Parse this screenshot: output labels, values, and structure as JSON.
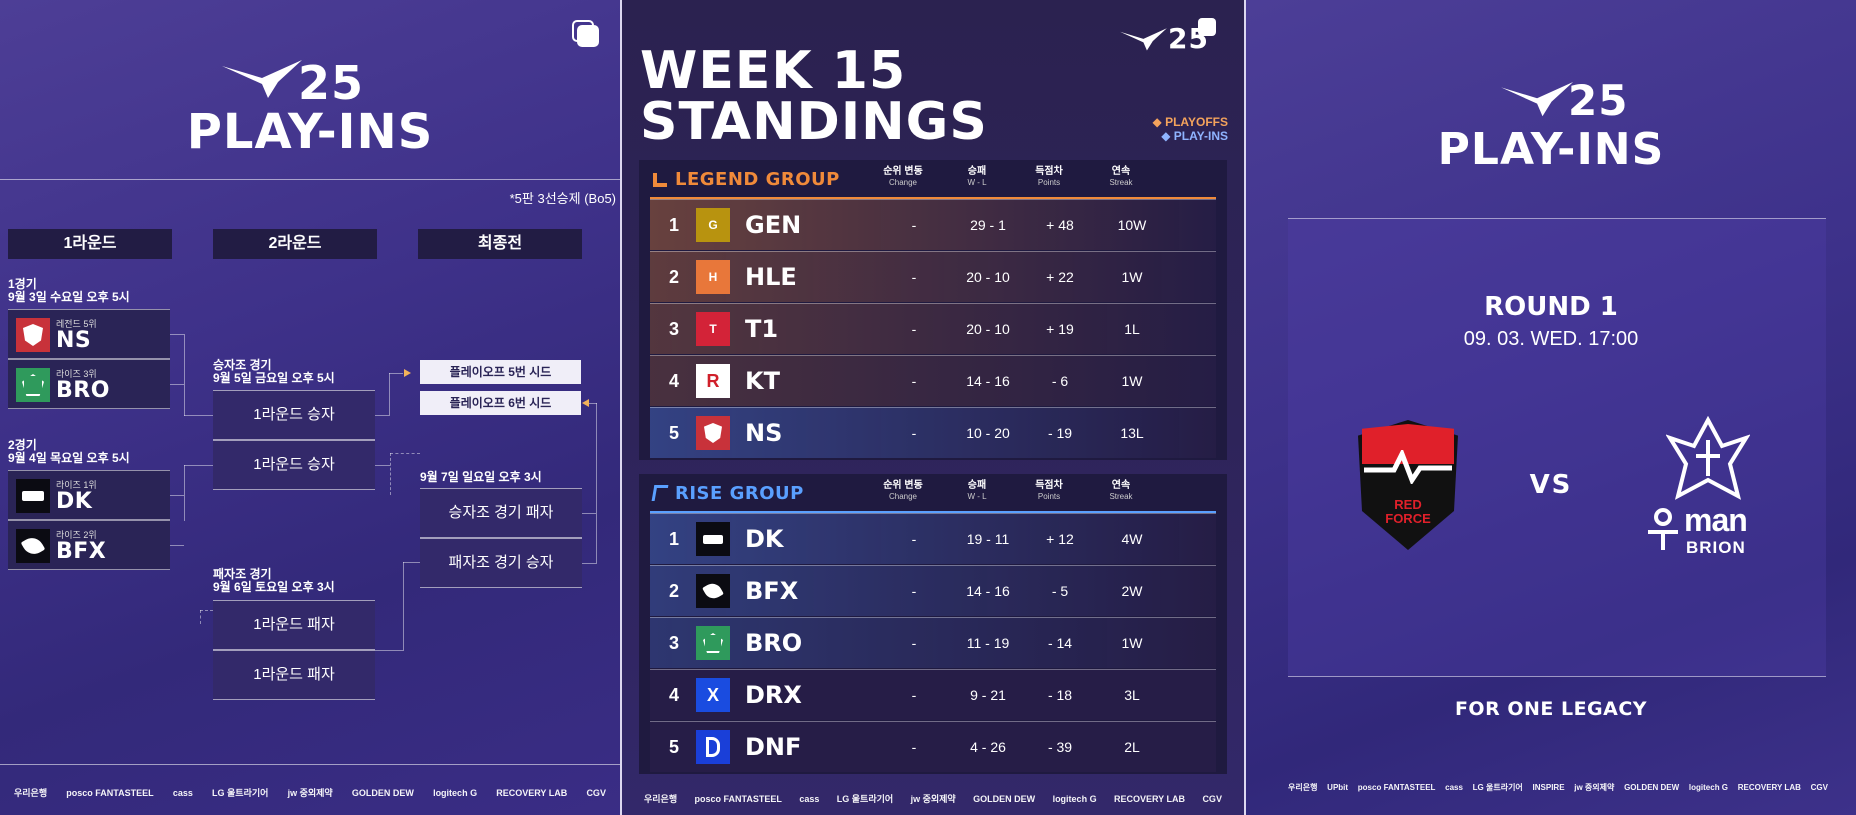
{
  "playins": {
    "year": "25",
    "title": "PLAY-INS",
    "note": "*5판 3선승제 (Bo5)",
    "round_headers": [
      "1라운드",
      "2라운드",
      "최종전"
    ],
    "match1": {
      "label": "1경기",
      "date": "9월 3일 수요일 오후 5시",
      "teams": [
        {
          "sub": "레전드 5위",
          "name": "NS"
        },
        {
          "sub": "라이즈 3위",
          "name": "BRO"
        }
      ]
    },
    "match2": {
      "label": "2경기",
      "date": "9월 4일 목요일 오후 5시",
      "teams": [
        {
          "sub": "라이즈 1위",
          "name": "DK"
        },
        {
          "sub": "라이즈 2위",
          "name": "BFX"
        }
      ]
    },
    "winners": {
      "label": "승자조 경기",
      "date": "9월 5일 금요일 오후 5시",
      "slots": [
        "1라운드 승자",
        "1라운드 승자"
      ]
    },
    "losers": {
      "label": "패자조 경기",
      "date": "9월 6일 토요일 오후 3시",
      "slots": [
        "1라운드 패자",
        "1라운드 패자"
      ]
    },
    "final": {
      "date": "9월 7일 일요일 오후 3시",
      "slots": [
        "승자조 경기 패자",
        "패자조 경기 승자"
      ]
    },
    "seeds": [
      "플레이오프 5번 시드",
      "플레이오프 6번 시드"
    ]
  },
  "sponsors1": [
    "우리은행",
    "posco FANTASTEEL",
    "cass",
    "LG 울트라기어",
    "jw 중외제약",
    "GOLDEN DEW",
    "logitech G",
    "RECOVERY LAB",
    "CGV"
  ],
  "standings": {
    "year": "25",
    "title_line1": "WEEK 15",
    "title_line2": "STANDINGS",
    "legend_playoffs": "◆ PLAYOFFS",
    "legend_playins": "◆ PLAY-INS",
    "columns": [
      {
        "ko": "순위 변동",
        "en": "Change"
      },
      {
        "ko": "승패",
        "en": "W - L"
      },
      {
        "ko": "득점차",
        "en": "Points"
      },
      {
        "ko": "연속",
        "en": "Streak"
      }
    ],
    "legend_group": {
      "name": "LEGEND GROUP",
      "rows": [
        {
          "rank": "1",
          "team": "GEN",
          "change": "-",
          "wl": "29 - 1",
          "points": "+ 48",
          "streak": "10W"
        },
        {
          "rank": "2",
          "team": "HLE",
          "change": "-",
          "wl": "20 - 10",
          "points": "+ 22",
          "streak": "1W"
        },
        {
          "rank": "3",
          "team": "T1",
          "change": "-",
          "wl": "20 - 10",
          "points": "+ 19",
          "streak": "1L"
        },
        {
          "rank": "4",
          "team": "KT",
          "change": "-",
          "wl": "14 - 16",
          "points": "- 6",
          "streak": "1W"
        },
        {
          "rank": "5",
          "team": "NS",
          "change": "-",
          "wl": "10 - 20",
          "points": "- 19",
          "streak": "13L"
        }
      ]
    },
    "rise_group": {
      "name": "RISE GROUP",
      "rows": [
        {
          "rank": "1",
          "team": "DK",
          "change": "-",
          "wl": "19 - 11",
          "points": "+ 12",
          "streak": "4W"
        },
        {
          "rank": "2",
          "team": "BFX",
          "change": "-",
          "wl": "14 - 16",
          "points": "- 5",
          "streak": "2W"
        },
        {
          "rank": "3",
          "team": "BRO",
          "change": "-",
          "wl": "11 - 19",
          "points": "- 14",
          "streak": "1W"
        },
        {
          "rank": "4",
          "team": "DRX",
          "change": "-",
          "wl": "9 - 21",
          "points": "- 18",
          "streak": "3L"
        },
        {
          "rank": "5",
          "team": "DNF",
          "change": "-",
          "wl": "4 - 26",
          "points": "- 39",
          "streak": "2L"
        }
      ]
    }
  },
  "sponsors2": [
    "우리은행",
    "posco FANTASTEEL",
    "cass",
    "LG 울트라기어",
    "jw 중외제약",
    "GOLDEN DEW",
    "logitech G",
    "RECOVERY LAB",
    "CGV"
  ],
  "matchup": {
    "year": "25",
    "title": "PLAY-INS",
    "round": "ROUND 1",
    "datetime": "09. 03. WED. 17:00",
    "vs": "VS",
    "team1_logo_text": "RED FORCE",
    "team2_logo_text1": "man",
    "team2_logo_text2": "BRION",
    "tagline": "FOR ONE LEGACY"
  },
  "sponsors3": [
    "우리은행",
    "UPbit",
    "posco FANTASTEEL",
    "cass",
    "LG 울트라기어",
    "INSPIRE",
    "jw 중외제약",
    "GOLDEN DEW",
    "logitech G",
    "RECOVERY LAB",
    "CGV"
  ],
  "colors": {
    "legend_orange": "#f08a3a",
    "rise_blue": "#5aa0ff",
    "playoffs": "#f4a35c",
    "playins": "#8fb4ff"
  }
}
